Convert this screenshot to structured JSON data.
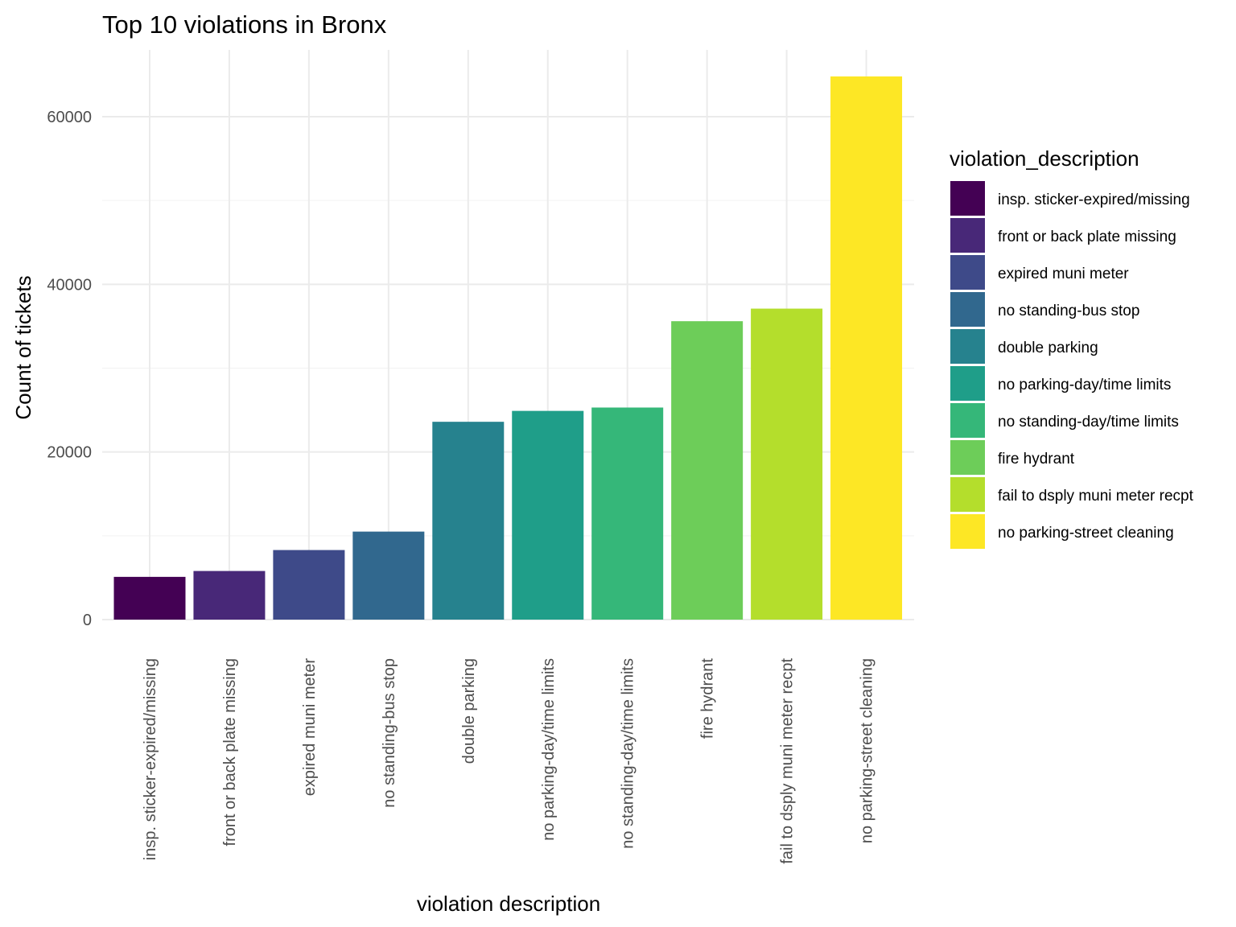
{
  "chart_data": {
    "type": "bar",
    "title": "Top 10 violations in Bronx",
    "xlabel": "violation description",
    "ylabel": "Count of tickets",
    "categories": [
      "insp. sticker-expired/missing",
      "front or back plate missing",
      "expired muni meter",
      "no standing-bus stop",
      "double parking",
      "no parking-day/time limits",
      "no standing-day/time limits",
      "fire hydrant",
      "fail to dsply muni meter recpt",
      "no parking-street cleaning"
    ],
    "values": [
      5100,
      5800,
      8300,
      10500,
      23600,
      24900,
      25300,
      35600,
      37100,
      64800
    ],
    "colors": [
      "#440154",
      "#482878",
      "#3E4A89",
      "#31688E",
      "#26828E",
      "#1F9E89",
      "#35B779",
      "#6DCD59",
      "#B4DE2C",
      "#FDE725"
    ],
    "ylim": [
      0,
      68000
    ],
    "yticks": [
      0,
      20000,
      40000,
      60000
    ],
    "ytick_labels": [
      "0",
      "20000",
      "40000",
      "60000"
    ],
    "grid": true,
    "legend": {
      "title": "violation_description",
      "position": "right"
    }
  }
}
